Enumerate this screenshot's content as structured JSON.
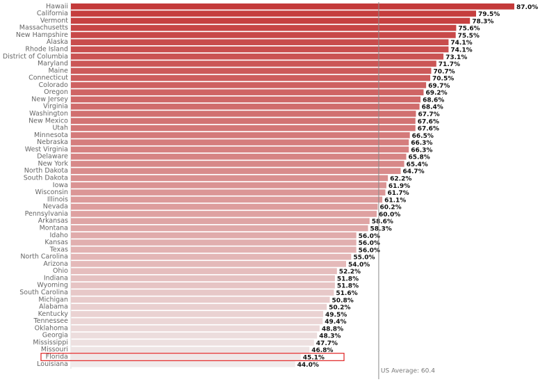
{
  "chart_data": {
    "type": "bar",
    "orientation": "horizontal",
    "categories": [
      "Hawaii",
      "California",
      "Vermont",
      "Massachusetts",
      "New Hampshire",
      "Alaska",
      "Rhode Island",
      "District of Columbia",
      "Maryland",
      "Maine",
      "Connecticut",
      "Colorado",
      "Oregon",
      "New Jersey",
      "Virginia",
      "Washington",
      "New Mexico",
      "Utah",
      "Minnesota",
      "Nebraska",
      "West Virginia",
      "Delaware",
      "New York",
      "North Dakota",
      "South Dakota",
      "Iowa",
      "Wisconsin",
      "Illinois",
      "Nevada",
      "Pennsylvania",
      "Arkansas",
      "Montana",
      "Idaho",
      "Kansas",
      "Texas",
      "North Carolina",
      "Arizona",
      "Ohio",
      "Indiana",
      "Wyoming",
      "South Carolina",
      "Michigan",
      "Alabama",
      "Kentucky",
      "Tennessee",
      "Oklahoma",
      "Georgia",
      "Mississippi",
      "Missouri",
      "Florida",
      "Louisiana"
    ],
    "values": [
      87.0,
      79.5,
      78.3,
      75.6,
      75.5,
      74.1,
      74.1,
      73.1,
      71.7,
      70.7,
      70.5,
      69.7,
      69.2,
      68.6,
      68.4,
      67.7,
      67.6,
      67.6,
      66.5,
      66.3,
      66.3,
      65.8,
      65.4,
      64.7,
      62.2,
      61.9,
      61.7,
      61.1,
      60.2,
      60.0,
      58.6,
      58.3,
      56.0,
      56.0,
      56.0,
      55.0,
      54.0,
      52.2,
      51.8,
      51.8,
      51.6,
      50.8,
      50.2,
      49.5,
      49.4,
      48.8,
      48.3,
      47.7,
      46.8,
      45.1,
      44.0
    ],
    "value_labels": [
      "87.0%",
      "79.5%",
      "78.3%",
      "75.6%",
      "75.5%",
      "74.1%",
      "74.1%",
      "73.1%",
      "71.7%",
      "70.7%",
      "70.5%",
      "69.7%",
      "69.2%",
      "68.6%",
      "68.4%",
      "67.7%",
      "67.6%",
      "67.6%",
      "66.5%",
      "66.3%",
      "66.3%",
      "65.8%",
      "65.4%",
      "64.7%",
      "62.2%",
      "61.9%",
      "61.7%",
      "61.1%",
      "60.2%",
      "60.0%",
      "58.6%",
      "58.3%",
      "56.0%",
      "56.0%",
      "56.0%",
      "55.0%",
      "54.0%",
      "52.2%",
      "51.8%",
      "51.8%",
      "51.6%",
      "50.8%",
      "50.2%",
      "49.5%",
      "49.4%",
      "48.8%",
      "48.3%",
      "47.7%",
      "46.8%",
      "45.1%",
      "44.0%"
    ],
    "colors": [
      "#c43a3a",
      "#f0ebeb"
    ],
    "reference_line": {
      "value": 60.4,
      "label": "US Average: 60.4",
      "color": "#888888"
    },
    "highlight": "Florida",
    "highlight_color": "#e02020"
  }
}
